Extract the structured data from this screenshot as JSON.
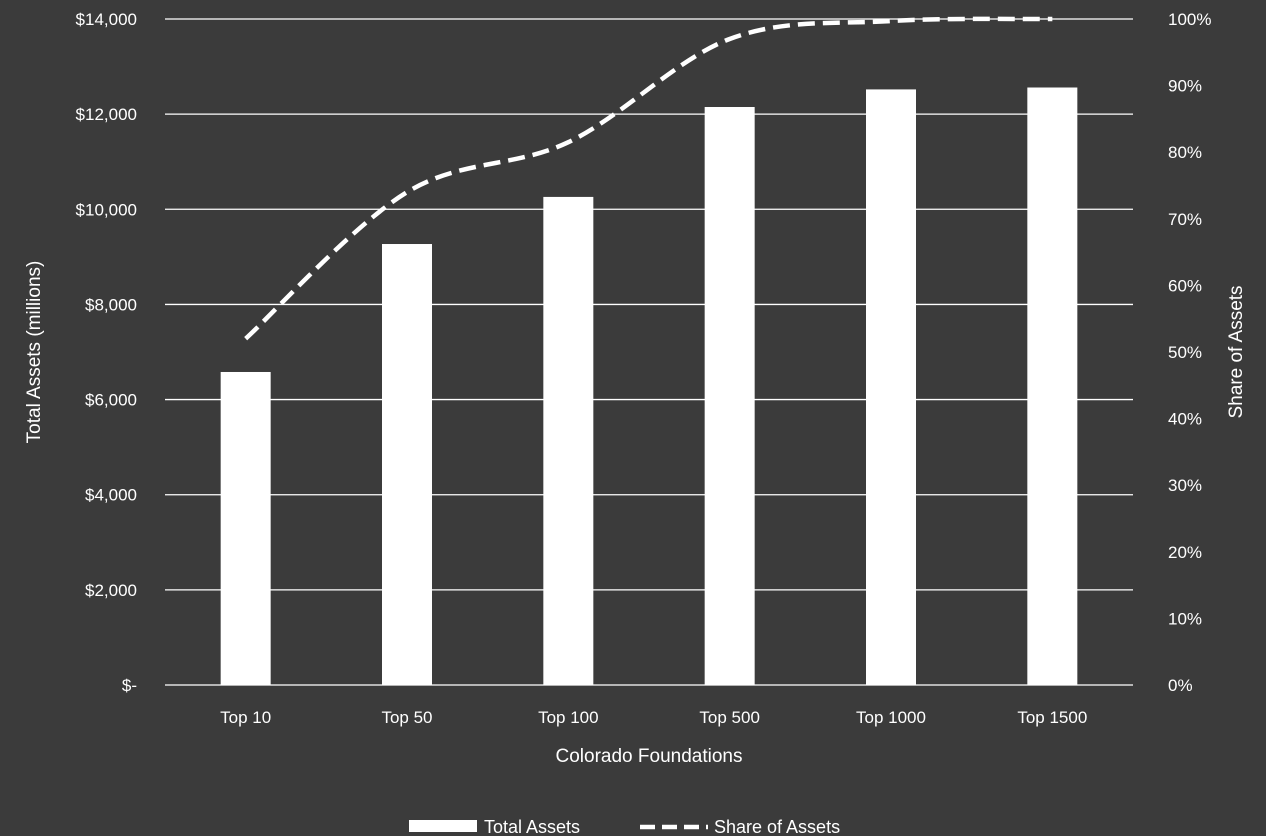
{
  "chart_data": {
    "type": "bar",
    "title": "",
    "categories": [
      "Top 10",
      "Top 50",
      "Top 100",
      "Top 500",
      "Top 1000",
      "Top 1500"
    ],
    "xlabel": "Colorado Foundations",
    "ylabel": "Total Assets (millions)",
    "y2label": "Share of Assets",
    "ylim": [
      0,
      14000
    ],
    "y2lim": [
      0,
      1
    ],
    "yticks": [
      {
        "value": 0,
        "label": "$-"
      },
      {
        "value": 2000,
        "label": "$2,000"
      },
      {
        "value": 4000,
        "label": "$4,000"
      },
      {
        "value": 6000,
        "label": "$6,000"
      },
      {
        "value": 8000,
        "label": "$8,000"
      },
      {
        "value": 10000,
        "label": "$10,000"
      },
      {
        "value": 12000,
        "label": "$12,000"
      },
      {
        "value": 14000,
        "label": "$14,000"
      }
    ],
    "y2ticks": [
      {
        "value": 0,
        "label": "0%"
      },
      {
        "value": 0.1,
        "label": "10%"
      },
      {
        "value": 0.2,
        "label": "20%"
      },
      {
        "value": 0.3,
        "label": "30%"
      },
      {
        "value": 0.4,
        "label": "40%"
      },
      {
        "value": 0.5,
        "label": "50%"
      },
      {
        "value": 0.6,
        "label": "60%"
      },
      {
        "value": 0.7,
        "label": "70%"
      },
      {
        "value": 0.8,
        "label": "80%"
      },
      {
        "value": 0.9,
        "label": "90%"
      },
      {
        "value": 1.0,
        "label": "100%"
      }
    ],
    "series": [
      {
        "name": "Total Assets",
        "type": "bar",
        "axis": "left",
        "values": [
          6580,
          9270,
          10260,
          12150,
          12520,
          12560
        ]
      },
      {
        "name": "Share of Assets",
        "type": "line",
        "style": "dashed",
        "axis": "right",
        "values": [
          0.52,
          0.74,
          0.815,
          0.97,
          0.997,
          1.0
        ]
      }
    ],
    "grid": true,
    "legend": "bottom",
    "colors": {
      "background": "#3b3b3b",
      "bars": "#ffffff",
      "line": "#ffffff",
      "grid": "#ffffff",
      "text": "#ffffff"
    }
  }
}
